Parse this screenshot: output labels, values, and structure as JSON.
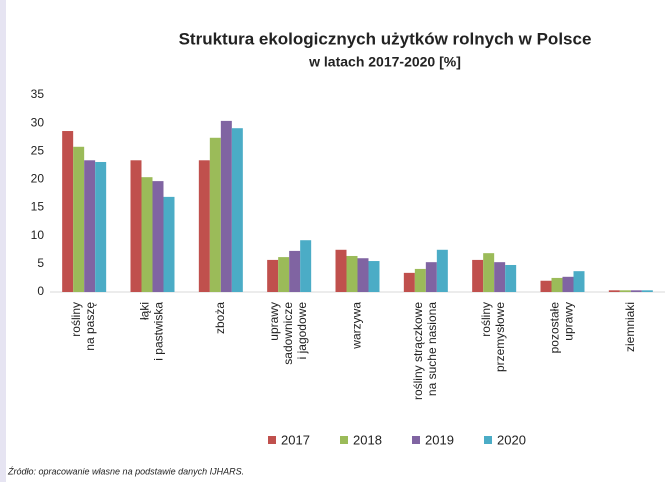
{
  "chart_data": {
    "type": "bar",
    "title": "Struktura ekologicznych użytków rolnych w Polsce",
    "subtitle": "w latach 2017-2020 [%]",
    "categories": [
      "rośliny\nna paszę",
      "łąki\ni pastwiska",
      "zboża",
      "uprawy\nsadownicze\ni jagodowe",
      "warzywa",
      "rośliny strączkowe\nna suche nasiona",
      "rośliny\nprzemysłowe",
      "pozostałe\nuprawy",
      "ziemniaki"
    ],
    "series": [
      {
        "name": "2017",
        "color": "#c0504d",
        "values": [
          28.6,
          23.4,
          23.4,
          5.7,
          7.5,
          3.4,
          5.7,
          2.0,
          0.3
        ]
      },
      {
        "name": "2018",
        "color": "#9bbb59",
        "values": [
          25.8,
          20.4,
          27.4,
          6.2,
          6.4,
          4.1,
          6.9,
          2.5,
          0.3
        ]
      },
      {
        "name": "2019",
        "color": "#8064a2",
        "values": [
          23.4,
          19.7,
          30.4,
          7.3,
          6.0,
          5.3,
          5.3,
          2.7,
          0.3
        ]
      },
      {
        "name": "2020",
        "color": "#4bacc6",
        "values": [
          23.1,
          16.9,
          29.1,
          9.2,
          5.5,
          7.5,
          4.8,
          3.7,
          0.3
        ]
      }
    ],
    "ylim": [
      0,
      35
    ],
    "yticks": [
      0,
      5,
      10,
      15,
      20,
      25,
      30,
      35
    ],
    "legend": "bottom",
    "source": "Źródło: opracowanie własne na podstawie danych IJHARS."
  }
}
